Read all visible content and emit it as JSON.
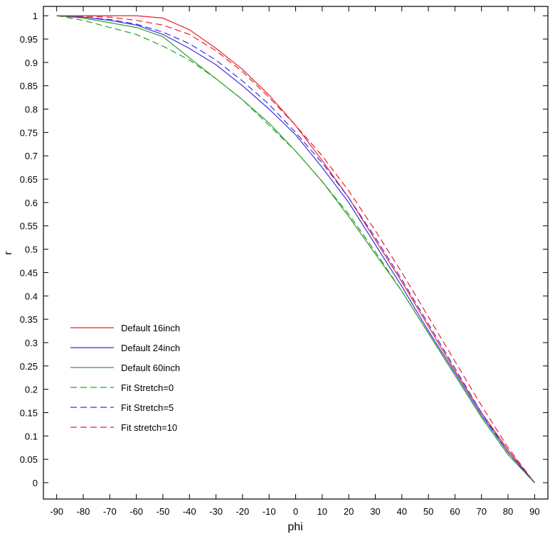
{
  "chart_data": {
    "type": "line",
    "xlabel": "phi",
    "ylabel": "r",
    "xlim": [
      -95,
      95
    ],
    "ylim": [
      -0.035,
      1.02
    ],
    "x_ticks": [
      -90,
      -80,
      -70,
      -60,
      -50,
      -40,
      -30,
      -20,
      -10,
      0,
      10,
      20,
      30,
      40,
      50,
      60,
      70,
      80,
      90
    ],
    "y_ticks": [
      0,
      0.05,
      0.1,
      0.15,
      0.2,
      0.25,
      0.3,
      0.35,
      0.4,
      0.45,
      0.5,
      0.55,
      0.6,
      0.65,
      0.7,
      0.75,
      0.8,
      0.85,
      0.9,
      0.95,
      1
    ],
    "x_tick_labels": [
      "-90",
      "-80",
      "-70",
      "-60",
      "-50",
      "-40",
      "-30",
      "-20",
      "-10",
      "0",
      "10",
      "20",
      "30",
      "40",
      "50",
      "60",
      "70",
      "80",
      "90"
    ],
    "y_tick_labels": [
      "0",
      "0.05",
      "0.1",
      "0.15",
      "0.2",
      "0.25",
      "0.3",
      "0.35",
      "0.4",
      "0.45",
      "0.5",
      "0.55",
      "0.6",
      "0.65",
      "0.7",
      "0.75",
      "0.8",
      "0.85",
      "0.9",
      "0.95",
      "1"
    ],
    "grid": false,
    "legend_position": "lower-left",
    "series": [
      {
        "name": "Default 16inch",
        "color": "#e8202a",
        "dash": "solid",
        "x": [
          -90,
          -80,
          -70,
          -60,
          -50,
          -40,
          -30,
          -20,
          -10,
          0,
          10,
          20,
          30,
          40,
          50,
          60,
          70,
          80,
          90
        ],
        "y": [
          1.0,
          1.0,
          1.0,
          1.0,
          0.995,
          0.97,
          0.93,
          0.885,
          0.83,
          0.765,
          0.69,
          0.61,
          0.52,
          0.43,
          0.335,
          0.24,
          0.15,
          0.07,
          0.0
        ]
      },
      {
        "name": "Default 24inch",
        "color": "#3b2fe0",
        "dash": "solid",
        "x": [
          -90,
          -80,
          -70,
          -60,
          -50,
          -40,
          -30,
          -20,
          -10,
          0,
          10,
          20,
          30,
          40,
          50,
          60,
          70,
          80,
          90
        ],
        "y": [
          1.0,
          0.997,
          0.99,
          0.98,
          0.96,
          0.93,
          0.895,
          0.85,
          0.8,
          0.745,
          0.675,
          0.6,
          0.51,
          0.42,
          0.325,
          0.235,
          0.145,
          0.065,
          0.0
        ]
      },
      {
        "name": "Default 60inch",
        "color": "#2aa02a",
        "dash": "solid",
        "x": [
          -90,
          -80,
          -70,
          -60,
          -50,
          -40,
          -30,
          -20,
          -10,
          0,
          10,
          20,
          30,
          40,
          50,
          60,
          70,
          80,
          90
        ],
        "y": [
          1.0,
          0.995,
          0.985,
          0.975,
          0.955,
          0.91,
          0.865,
          0.82,
          0.77,
          0.71,
          0.645,
          0.57,
          0.49,
          0.41,
          0.32,
          0.23,
          0.14,
          0.06,
          0.0
        ]
      },
      {
        "name": "Fit Stretch=0",
        "color": "#2aa02a",
        "dash": "dashed",
        "x": [
          -90,
          -80,
          -70,
          -60,
          -50,
          -40,
          -30,
          -20,
          -10,
          0,
          10,
          20,
          30,
          40,
          50,
          60,
          70,
          80,
          90
        ],
        "y": [
          1.0,
          0.99,
          0.975,
          0.96,
          0.935,
          0.905,
          0.865,
          0.82,
          0.765,
          0.71,
          0.645,
          0.575,
          0.495,
          0.41,
          0.32,
          0.23,
          0.14,
          0.06,
          0.0
        ]
      },
      {
        "name": "Fit Stretch=5",
        "color": "#3b2fe0",
        "dash": "dashed",
        "x": [
          -90,
          -80,
          -70,
          -60,
          -50,
          -40,
          -30,
          -20,
          -10,
          0,
          10,
          20,
          30,
          40,
          50,
          60,
          70,
          80,
          90
        ],
        "y": [
          1.0,
          0.997,
          0.992,
          0.982,
          0.965,
          0.94,
          0.905,
          0.86,
          0.81,
          0.75,
          0.685,
          0.61,
          0.525,
          0.435,
          0.34,
          0.245,
          0.15,
          0.065,
          0.0
        ]
      },
      {
        "name": "Fit stretch=10",
        "color": "#e8202a",
        "dash": "dashed",
        "x": [
          -90,
          -80,
          -70,
          -60,
          -50,
          -40,
          -30,
          -20,
          -10,
          0,
          10,
          20,
          30,
          40,
          50,
          60,
          70,
          80,
          90
        ],
        "y": [
          1.0,
          0.999,
          0.997,
          0.99,
          0.98,
          0.96,
          0.925,
          0.88,
          0.825,
          0.765,
          0.7,
          0.625,
          0.54,
          0.45,
          0.355,
          0.26,
          0.165,
          0.075,
          0.0
        ]
      }
    ]
  }
}
